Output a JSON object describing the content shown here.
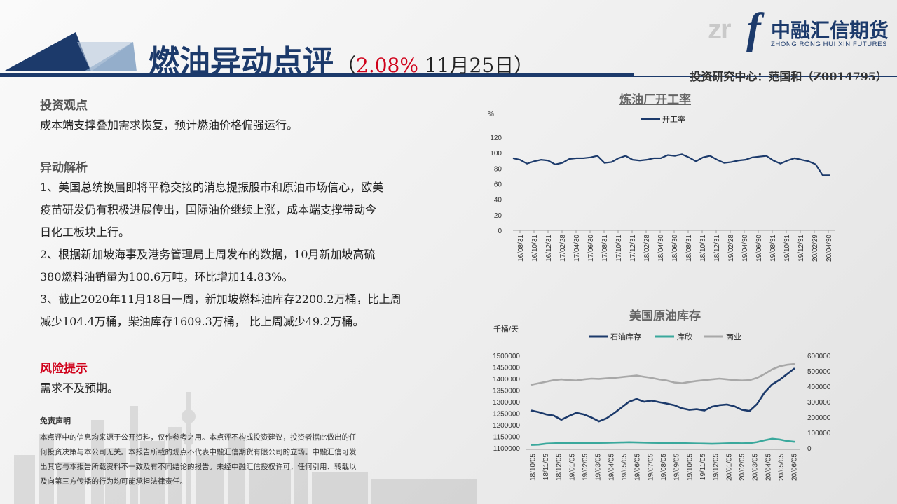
{
  "header": {
    "title": "燃油异动点评",
    "subtitle_open": "（",
    "subtitle_pct": "2.08%",
    "subtitle_date": " 11月25日",
    "subtitle_close": "）",
    "author": "投资研究中心：范国和（Z0014795）"
  },
  "logo": {
    "mark_gray": "zr",
    "mark_blue": "f",
    "name_cn": "中融汇信期货",
    "name_en": "ZHONG RONG HUI XIN FUTURES"
  },
  "colors": {
    "brand": "#1c3a6b",
    "accent_red": "#d0021b",
    "teal": "#3aa89c",
    "gray": "#a8a8a8"
  },
  "content": {
    "view_title": "投资观点",
    "view_text": "成本端支撑叠加需求恢复，预计燃油价格偏强运行。",
    "analysis_title": "异动解析",
    "analysis_lines": [
      "1、美国总统换届即将平稳交接的消息提振股市和原油市场信心，欧美",
      "疫苗研发仍有积极进展传出，国际油价继续上涨，成本端支撑带动今",
      "日化工板块上行。",
      "2、根据新加坡海事及港务管理局上周发布的数据，10月新加坡高硫",
      "380燃料油销量为100.6万吨，环比增加14.83%。",
      "3、截止2020年11月18日一周，新加坡燃料油库存2200.2万桶，比上周",
      "减少104.4万桶，柴油库存1609.3万桶， 比上周减少49.2万桶。"
    ],
    "risk_title": "风险提示",
    "risk_text": "需求不及预期。",
    "disclaimer_title": "免责声明",
    "disclaimer_lines": [
      "本点评中的信息均来源于公开资料，仅作参考之用。本点评不构成投资建议，投资者据此做出的任",
      "何投资决策与本公司无关。本报告所载的观点不代表中融汇信期货有限公司的立场。中融汇信可发",
      "出其它与本报告所载资料不一致及有不同结论的报告。未经中融汇信授权许可，任何引用、转载以",
      "及向第三方传播的行为均可能承担法律责任。"
    ]
  },
  "chart_data": [
    {
      "type": "line",
      "title": "炼油厂开工率",
      "ylabel": "%",
      "ylim": [
        0,
        120
      ],
      "yticks": [
        "0",
        "20",
        "40",
        "60",
        "80",
        "100",
        "120"
      ],
      "xtick_labels": [
        "16/08/31",
        "16/10/31",
        "16/12/31",
        "17/02/28",
        "17/04/30",
        "17/06/30",
        "17/08/31",
        "17/10/31",
        "17/12/31",
        "18/02/28",
        "18/04/30",
        "18/06/30",
        "18/08/31",
        "18/10/31",
        "18/12/31",
        "19/02/28",
        "19/04/30",
        "19/06/30",
        "19/08/31",
        "19/10/31",
        "19/12/31",
        "20/02/29",
        "20/04/30"
      ],
      "legend_position": "top-left",
      "series": [
        {
          "name": "开工率",
          "color": "#1c3a6b",
          "values": [
            93,
            91,
            86,
            89,
            91,
            90,
            85,
            87,
            92,
            93,
            93,
            94,
            96,
            87,
            88,
            93,
            96,
            91,
            90,
            91,
            93,
            93,
            97,
            96,
            98,
            94,
            89,
            94,
            96,
            91,
            87,
            88,
            90,
            91,
            94,
            95,
            96,
            90,
            86,
            90,
            93,
            91,
            89,
            85,
            71,
            71
          ]
        }
      ]
    },
    {
      "type": "line",
      "title": "美国原油库存",
      "ylabel": "千桶/天",
      "ylim_left": [
        1100000,
        1500000
      ],
      "ylim_right": [
        0,
        600000
      ],
      "yticks_left": [
        "1100000",
        "1150000",
        "1200000",
        "1250000",
        "1300000",
        "1350000",
        "1400000",
        "1450000",
        "1500000"
      ],
      "yticks_right": [
        "0",
        "100000",
        "200000",
        "300000",
        "400000",
        "500000",
        "600000"
      ],
      "xtick_labels": [
        "18/10/05",
        "18/11/05",
        "18/12/05",
        "19/01/05",
        "19/02/05",
        "19/03/05",
        "19/04/05",
        "19/05/05",
        "19/06/05",
        "19/07/05",
        "19/08/05",
        "19/09/05",
        "19/10/05",
        "19/11/05",
        "19/12/05",
        "20/01/05",
        "20/02/05",
        "20/03/05",
        "20/04/05",
        "20/05/05",
        "20/06/05"
      ],
      "legend_position": "top-center",
      "series": [
        {
          "name": "石油库存",
          "axis": "left",
          "color": "#1c3a6b",
          "values": [
            1262000,
            1255000,
            1245000,
            1240000,
            1222000,
            1238000,
            1252000,
            1245000,
            1232000,
            1215000,
            1228000,
            1250000,
            1275000,
            1300000,
            1312000,
            1300000,
            1305000,
            1298000,
            1292000,
            1285000,
            1272000,
            1265000,
            1268000,
            1262000,
            1278000,
            1285000,
            1288000,
            1280000,
            1265000,
            1260000,
            1290000,
            1340000,
            1375000,
            1395000,
            1420000,
            1445000
          ]
        },
        {
          "name": "库欣",
          "axis": "right",
          "color": "#3aa89c",
          "values": [
            20000,
            22000,
            28000,
            30000,
            32000,
            33000,
            32000,
            31000,
            32000,
            33000,
            34000,
            35000,
            36000,
            37000,
            36000,
            35000,
            34000,
            33000,
            32000,
            32000,
            31000,
            30000,
            29000,
            28000,
            27000,
            28000,
            30000,
            31000,
            30000,
            31000,
            38000,
            50000,
            60000,
            55000,
            45000,
            40000
          ]
        },
        {
          "name": "商业",
          "axis": "right",
          "color": "#a8a8a8",
          "values": [
            410000,
            420000,
            430000,
            440000,
            445000,
            440000,
            438000,
            445000,
            450000,
            448000,
            452000,
            455000,
            460000,
            465000,
            470000,
            462000,
            455000,
            445000,
            438000,
            425000,
            420000,
            428000,
            435000,
            440000,
            445000,
            450000,
            445000,
            440000,
            438000,
            440000,
            455000,
            480000,
            510000,
            530000,
            540000,
            545000
          ]
        }
      ]
    }
  ]
}
